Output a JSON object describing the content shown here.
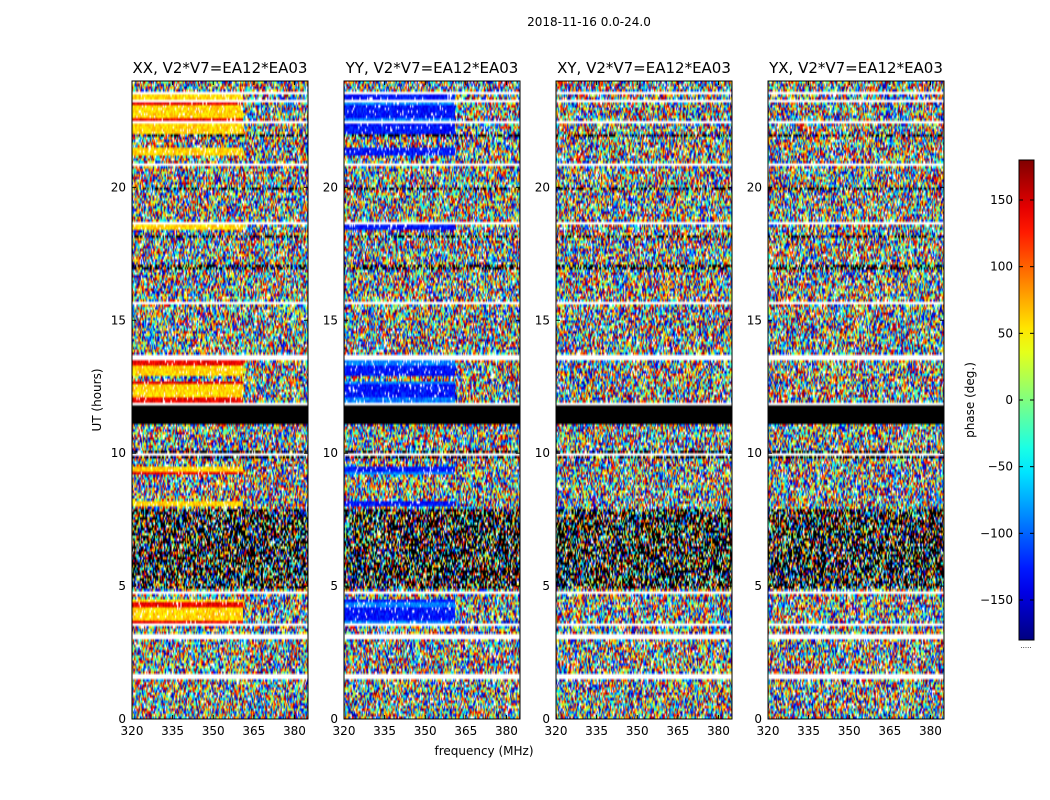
{
  "figure": {
    "suptitle": "2018-11-16 0.0-24.0"
  },
  "chart_data": {
    "type": "heatmap",
    "shared": {
      "xlabel": "frequency (MHz)",
      "ylabel": "UT (hours)",
      "xlim": [
        320,
        385
      ],
      "ylim": [
        0,
        24
      ],
      "x_ticks": [
        320,
        335,
        350,
        365,
        380
      ],
      "x_tick_labels": [
        "320",
        "335",
        "350",
        "365",
        "380"
      ],
      "y_ticks": [
        0,
        5,
        10,
        15,
        20
      ],
      "y_tick_labels": [
        "0",
        "5",
        "10",
        "15",
        "20"
      ],
      "noise_columns": 160,
      "noise_rows": 240
    },
    "panels": [
      {
        "title": "XX, V2*V7=EA12*EA03",
        "polarization": "XX",
        "baseline": "V2*V7",
        "antennas": "EA12*EA03",
        "coherent_phase_deg": 60,
        "coherent_phase_alt_deg": 140
      },
      {
        "title": "YY, V2*V7=EA12*EA03",
        "polarization": "YY",
        "baseline": "V2*V7",
        "antennas": "EA12*EA03",
        "coherent_phase_deg": -130,
        "coherent_phase_alt_deg": -90
      },
      {
        "title": "XY, V2*V7=EA12*EA03",
        "polarization": "XY",
        "baseline": "V2*V7",
        "antennas": "EA12*EA03",
        "coherent_phase_deg": null,
        "coherent_phase_alt_deg": null
      },
      {
        "title": "YX, V2*V7=EA12*EA03",
        "polarization": "YX",
        "baseline": "V2*V7",
        "antennas": "EA12*EA03",
        "coherent_phase_deg": null,
        "coherent_phase_alt_deg": null
      }
    ],
    "coherent_freq_range_mhz": [
      320,
      361
    ],
    "masked_ut_ranges": [
      [
        11.1,
        11.8
      ]
    ],
    "flagged_ut_ranges": [
      [
        1.5,
        1.72
      ],
      [
        3.05,
        3.15
      ],
      [
        3.55,
        3.62
      ],
      [
        4.72,
        4.8
      ],
      [
        9.95,
        10.02
      ],
      [
        11.8,
        11.9
      ],
      [
        13.55,
        13.75
      ],
      [
        15.55,
        15.72
      ],
      [
        18.6,
        18.7
      ],
      [
        20.8,
        20.9
      ],
      [
        22.45,
        22.55
      ],
      [
        23.2,
        23.3
      ],
      [
        23.55,
        23.62
      ]
    ],
    "dark_ut_ranges": [
      [
        4.85,
        7.9
      ],
      [
        9.8,
        10.1
      ],
      [
        16.95,
        17.05
      ],
      [
        18.15,
        18.25
      ],
      [
        19.9,
        20.05
      ],
      [
        21.95,
        22.05
      ]
    ],
    "coherent_ut_ranges": [
      [
        3.6,
        4.5
      ],
      [
        8.05,
        8.25
      ],
      [
        9.2,
        9.5
      ],
      [
        11.95,
        12.7
      ],
      [
        12.9,
        13.5
      ],
      [
        18.4,
        18.6
      ],
      [
        21.2,
        21.5
      ],
      [
        22.0,
        23.6
      ]
    ],
    "colorbar": {
      "label": "phase (deg.)",
      "range": [
        -180,
        180
      ],
      "ticks": [
        150,
        100,
        50,
        0,
        -50,
        -100,
        -150
      ],
      "tick_labels": [
        "150",
        "100",
        "50",
        "0",
        "−50",
        "−100",
        "−150"
      ],
      "colormap": "jet",
      "footer_text": "....."
    }
  }
}
